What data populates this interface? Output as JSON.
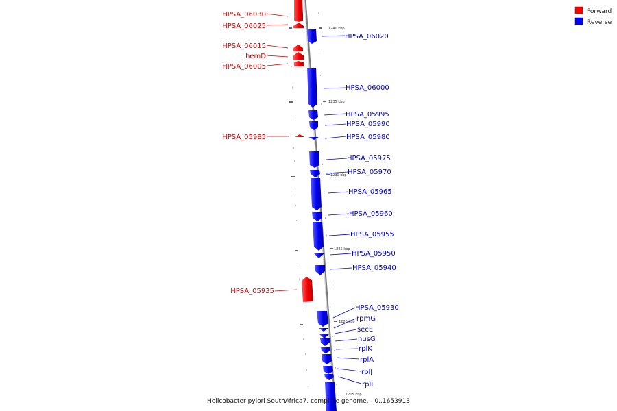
{
  "caption": "Helicobacter pylori SouthAfrica7, complete genome. - 0..1653913",
  "legend": [
    {
      "label": "Forward",
      "color": "#ff0000"
    },
    {
      "label": "Reverse",
      "color": "#0000ff"
    }
  ],
  "scale_labels": [
    "1240 kbp",
    "1235 kbp",
    "1230 kbp",
    "1225 kbp",
    "1220 kbp",
    "1215 kbp"
  ],
  "forward_genes": [
    "HPSA_06030",
    "HPSA_06025",
    "HPSA_06015",
    "hemD",
    "HPSA_06005",
    "HPSA_05985",
    "HPSA_05935"
  ],
  "reverse_genes": [
    "HPSA_06020",
    "HPSA_06000",
    "HPSA_05995",
    "HPSA_05990",
    "HPSA_05980",
    "HPSA_05975",
    "HPSA_05970",
    "HPSA_05965",
    "HPSA_05960",
    "HPSA_05955",
    "HPSA_05950",
    "HPSA_05940",
    "HPSA_05930",
    "rpmG",
    "secE",
    "nusG",
    "rplK",
    "rplA",
    "rplJ",
    "rplL"
  ],
  "colors": {
    "forward": "#ff0000",
    "reverse": "#0000ff",
    "axis": "#999999"
  }
}
